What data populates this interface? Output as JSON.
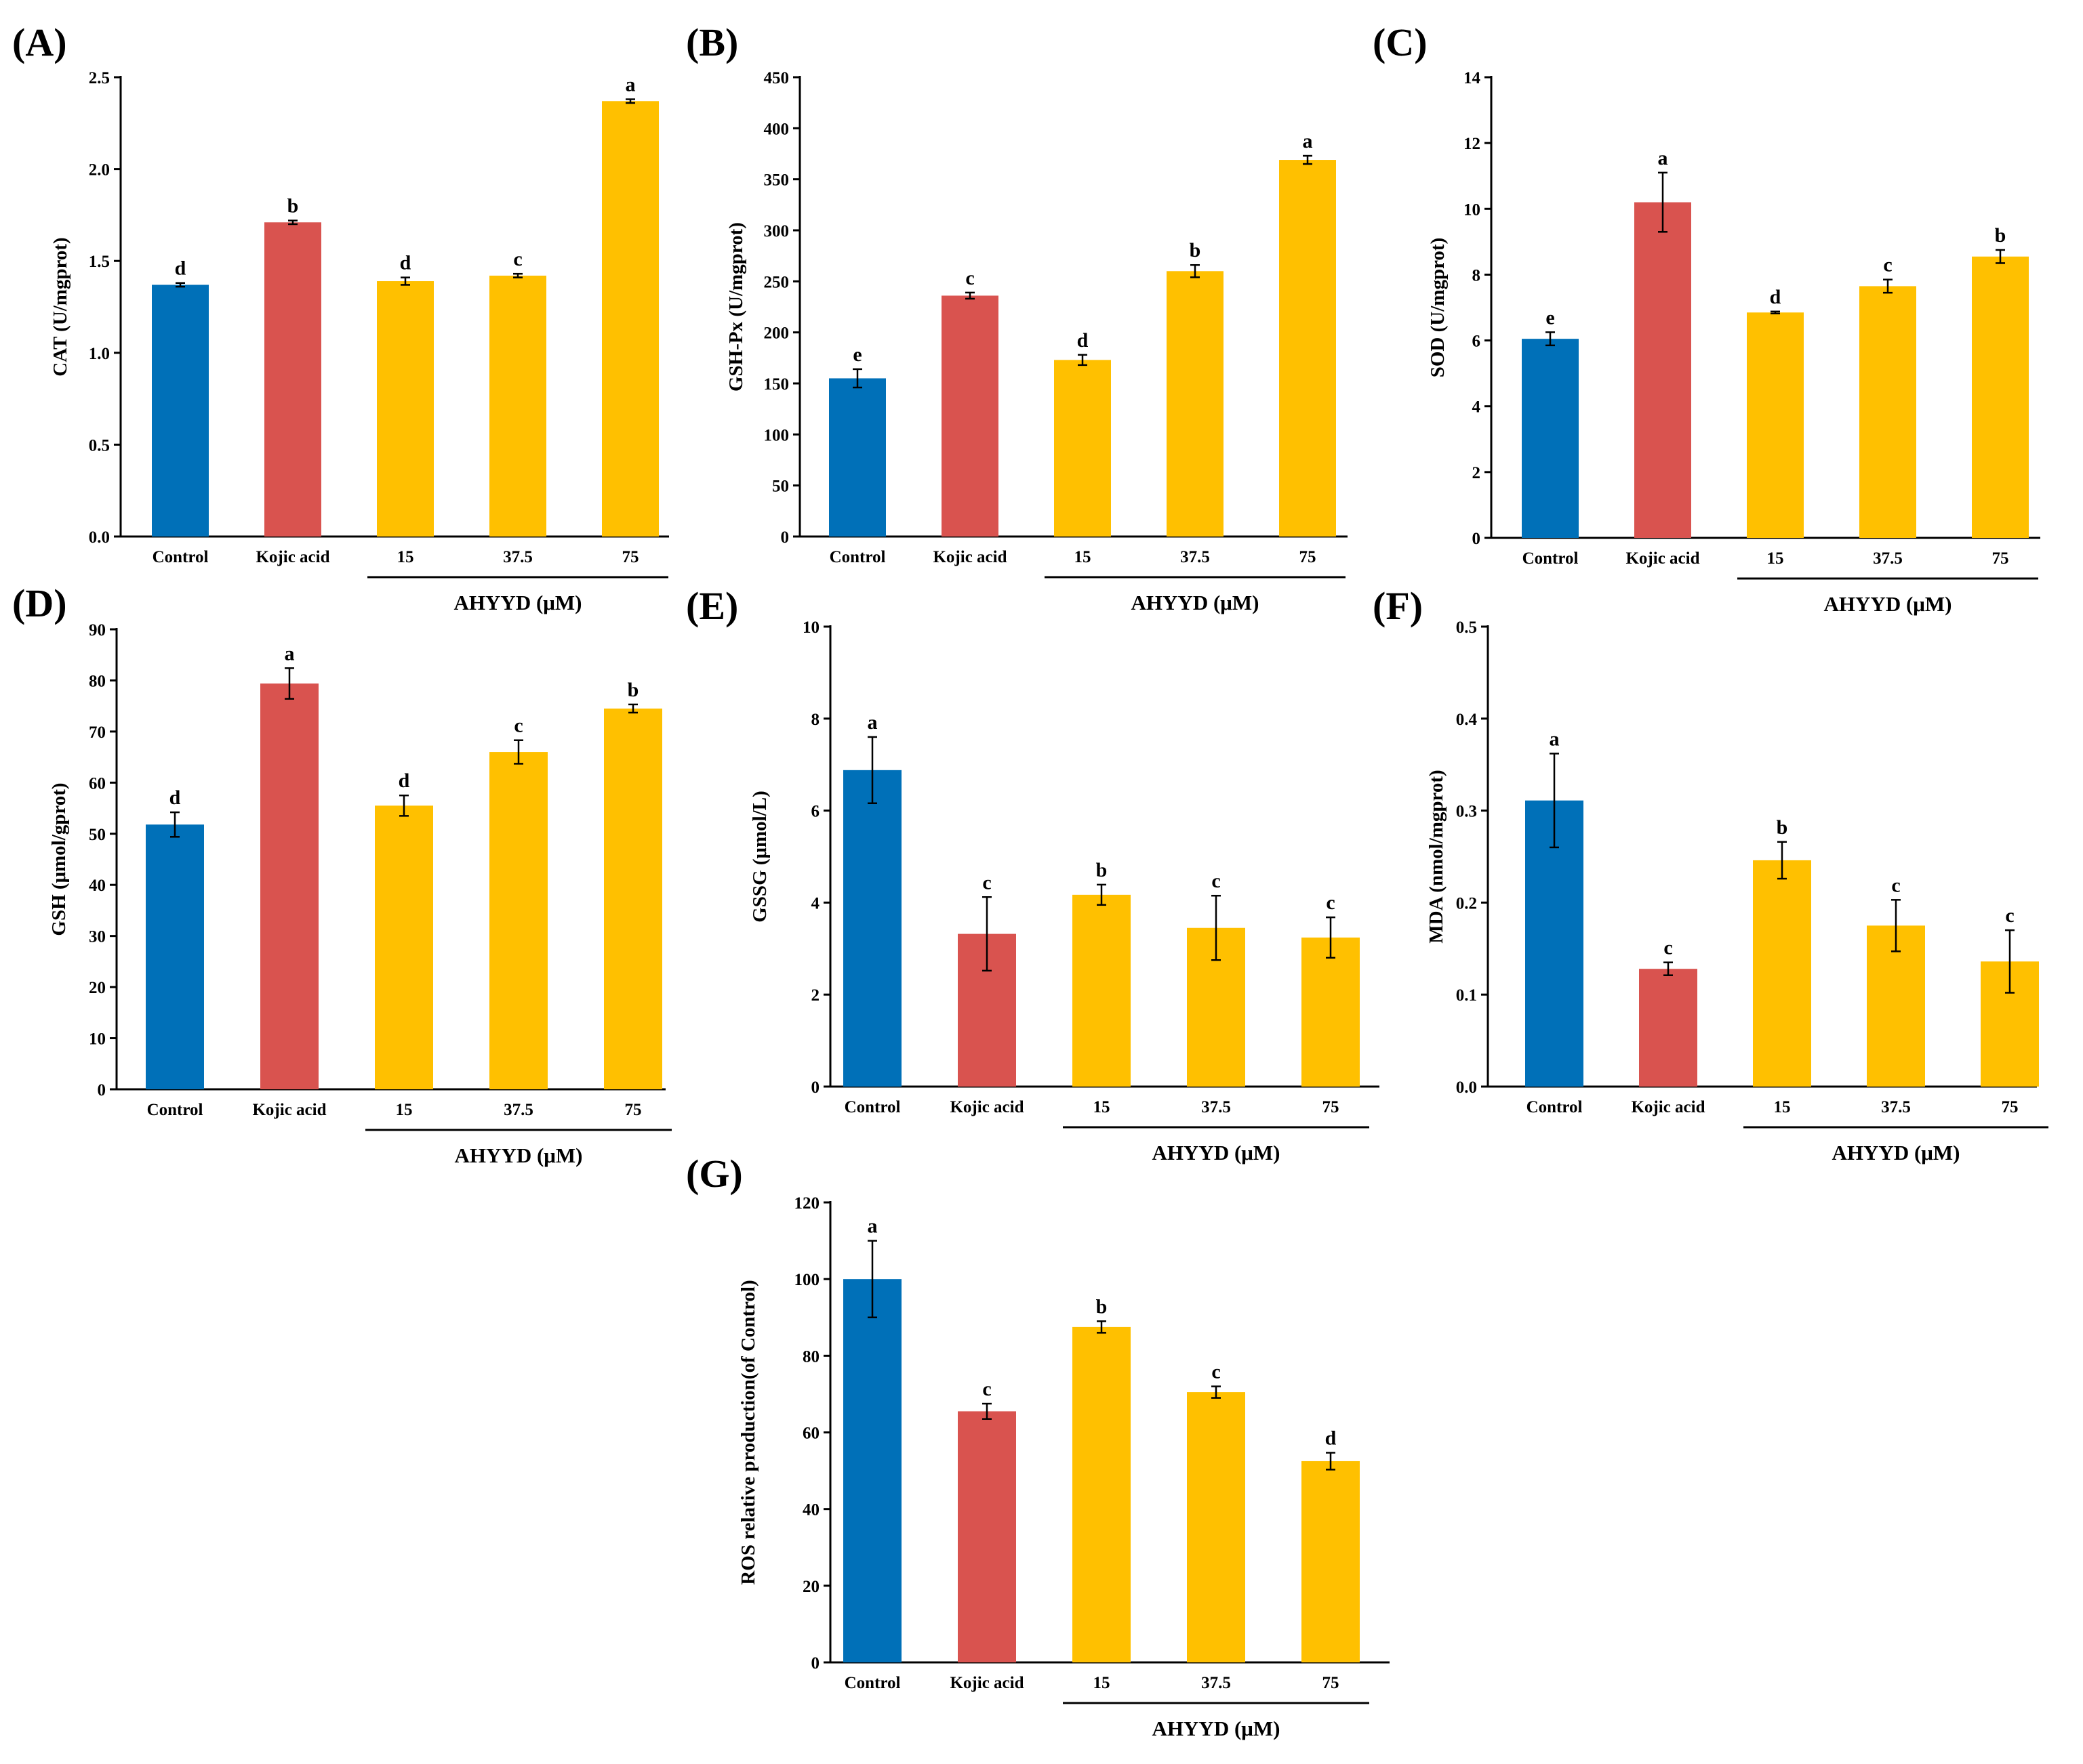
{
  "group_label": "AHYYD (μM)",
  "colors": {
    "control": "#0070B8",
    "kojic": "#D9534F",
    "ahyyd": "#FFC000"
  },
  "chart_data": [
    {
      "type": "bar",
      "panel": "(A)",
      "ylabel": "CAT (U/mgprot)",
      "categories": [
        "Control",
        "Kojic acid",
        "15",
        "37.5",
        "75"
      ],
      "values": [
        1.37,
        1.71,
        1.39,
        1.42,
        2.37
      ],
      "errors": [
        0.01,
        0.01,
        0.02,
        0.01,
        0.01
      ],
      "letters": [
        "d",
        "b",
        "d",
        "c",
        "a"
      ],
      "ylim": [
        0,
        2.5
      ],
      "yticks": [
        "0.0",
        "0.5",
        "1.0",
        "1.5",
        "2.0",
        "2.5"
      ]
    },
    {
      "type": "bar",
      "panel": "(B)",
      "ylabel": "GSH-Px (U/mgprot)",
      "categories": [
        "Control",
        "Kojic acid",
        "15",
        "37.5",
        "75"
      ],
      "values": [
        155,
        236,
        173,
        260,
        369
      ],
      "errors": [
        9,
        3,
        5,
        6,
        4
      ],
      "letters": [
        "e",
        "c",
        "d",
        "b",
        "a"
      ],
      "ylim": [
        0,
        450
      ],
      "yticks": [
        "0",
        "50",
        "100",
        "150",
        "200",
        "250",
        "300",
        "350",
        "400",
        "450"
      ]
    },
    {
      "type": "bar",
      "panel": "(C)",
      "ylabel": "SOD (U/mgprot)",
      "categories": [
        "Control",
        "Kojic acid",
        "15",
        "37.5",
        "75"
      ],
      "values": [
        6.05,
        10.2,
        6.85,
        7.65,
        8.55
      ],
      "errors": [
        0.2,
        0.9,
        0.03,
        0.2,
        0.2
      ],
      "letters": [
        "e",
        "a",
        "d",
        "c",
        "b"
      ],
      "ylim": [
        0,
        14
      ],
      "yticks": [
        "0",
        "2",
        "4",
        "6",
        "8",
        "10",
        "12",
        "14"
      ]
    },
    {
      "type": "bar",
      "panel": "(D)",
      "ylabel": "GSH (μmol/gprot)",
      "categories": [
        "Control",
        "Kojic acid",
        "15",
        "37.5",
        "75"
      ],
      "values": [
        51.8,
        79.4,
        55.5,
        66.0,
        74.5
      ],
      "errors": [
        2.4,
        3.0,
        2.0,
        2.3,
        0.8
      ],
      "letters": [
        "d",
        "a",
        "d",
        "c",
        "b"
      ],
      "ylim": [
        0,
        90
      ],
      "yticks": [
        "0",
        "10",
        "20",
        "30",
        "40",
        "50",
        "60",
        "70",
        "80",
        "90"
      ]
    },
    {
      "type": "bar",
      "panel": "(E)",
      "ylabel": "GSSG (μmol/L)",
      "categories": [
        "Control",
        "Kojic acid",
        "15",
        "37.5",
        "75"
      ],
      "values": [
        6.88,
        3.32,
        4.17,
        3.45,
        3.24
      ],
      "errors": [
        0.72,
        0.8,
        0.22,
        0.7,
        0.44
      ],
      "letters": [
        "a",
        "c",
        "b",
        "c",
        "c"
      ],
      "ylim": [
        0,
        10
      ],
      "yticks": [
        "0",
        "2",
        "4",
        "6",
        "8",
        "10"
      ]
    },
    {
      "type": "bar",
      "panel": "(F)",
      "ylabel": "MDA (nmol/mgprot)",
      "categories": [
        "Control",
        "Kojic acid",
        "15",
        "37.5",
        "75"
      ],
      "values": [
        0.311,
        0.128,
        0.246,
        0.175,
        0.136
      ],
      "errors": [
        0.051,
        0.007,
        0.02,
        0.028,
        0.034
      ],
      "letters": [
        "a",
        "c",
        "b",
        "c",
        "c"
      ],
      "ylim": [
        0,
        0.5
      ],
      "yticks": [
        "0.0",
        "0.1",
        "0.2",
        "0.3",
        "0.4",
        "0.5"
      ]
    },
    {
      "type": "bar",
      "panel": "(G)",
      "ylabel": "ROS relative production(of Control)",
      "categories": [
        "Control",
        "Kojic acid",
        "15",
        "37.5",
        "75"
      ],
      "values": [
        100,
        65.5,
        87.5,
        70.5,
        52.5
      ],
      "errors": [
        10,
        2,
        1.5,
        1.5,
        2.2
      ],
      "letters": [
        "a",
        "c",
        "b",
        "c",
        "d"
      ],
      "ylim": [
        0,
        120
      ],
      "yticks": [
        "0",
        "20",
        "40",
        "60",
        "80",
        "100",
        "120"
      ]
    }
  ]
}
